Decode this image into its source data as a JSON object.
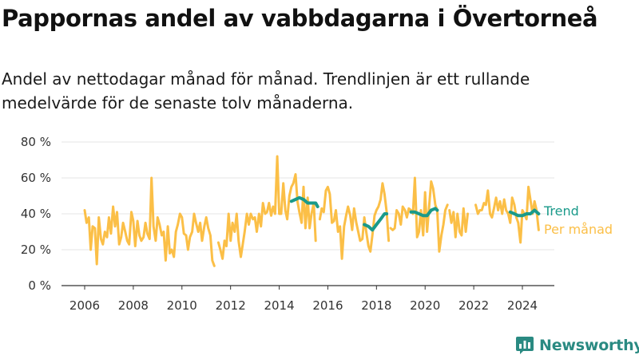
{
  "header": {
    "title": "Pappornas andel av vabbdagarna i Övertorneå",
    "subtitle": "Andel av nettodagar månad för månad. Trendlinjen är ett rullande medelvärde för de senaste tolv månaderna."
  },
  "brand": {
    "name": "Newsworthy",
    "icon": "newsworthy-logo-icon"
  },
  "colors": {
    "monthly": "#fbbf47",
    "trend": "#1a9a8a",
    "axis": "#333333",
    "grid": "#e6e6e6"
  },
  "chart_data": {
    "type": "line",
    "title": "Pappornas andel av vabbdagarna i Övertorneå",
    "subtitle": "Andel av nettodagar månad för månad. Trendlinjen är ett rullande medelvärde för de senaste tolv månaderna.",
    "x_ticks": [
      2006,
      2008,
      2010,
      2012,
      2014,
      2016,
      2018,
      2020,
      2022,
      2024
    ],
    "x_tick_labels": [
      "2006",
      "2008",
      "2010",
      "2012",
      "2014",
      "2016",
      "2018",
      "2020",
      "2022",
      "2024"
    ],
    "y_ticks": [
      0,
      20,
      40,
      60,
      80
    ],
    "y_tick_labels": [
      "0 %",
      "20 %",
      "40 %",
      "60 %",
      "80 %"
    ],
    "xlim": [
      2005.1,
      2025.2
    ],
    "ylim": [
      0,
      80
    ],
    "grid": "horizontal",
    "legend": "right",
    "series": [
      {
        "name": "Per månad",
        "segments": [
          [
            [
              2006.0,
              42
            ],
            [
              2006.08,
              35
            ],
            [
              2006.17,
              38
            ],
            [
              2006.25,
              20
            ],
            [
              2006.33,
              33
            ],
            [
              2006.42,
              32
            ],
            [
              2006.5,
              12
            ],
            [
              2006.58,
              38
            ],
            [
              2006.67,
              26
            ],
            [
              2006.75,
              23
            ],
            [
              2006.83,
              30
            ],
            [
              2006.92,
              27
            ],
            [
              2007.0,
              38
            ],
            [
              2007.08,
              29
            ],
            [
              2007.17,
              44
            ],
            [
              2007.25,
              33
            ],
            [
              2007.33,
              41
            ],
            [
              2007.42,
              23
            ],
            [
              2007.5,
              27
            ],
            [
              2007.58,
              35
            ],
            [
              2007.67,
              30
            ],
            [
              2007.75,
              25
            ],
            [
              2007.83,
              23
            ],
            [
              2007.92,
              41
            ],
            [
              2008.0,
              36
            ],
            [
              2008.08,
              22
            ],
            [
              2008.17,
              36
            ],
            [
              2008.25,
              28
            ],
            [
              2008.33,
              25
            ],
            [
              2008.42,
              27
            ],
            [
              2008.5,
              35
            ],
            [
              2008.58,
              29
            ],
            [
              2008.67,
              26
            ],
            [
              2008.75,
              60
            ],
            [
              2008.83,
              33
            ],
            [
              2008.92,
              25
            ],
            [
              2009.0,
              38
            ],
            [
              2009.08,
              34
            ],
            [
              2009.17,
              28
            ],
            [
              2009.25,
              30
            ],
            [
              2009.33,
              14
            ],
            [
              2009.42,
              33
            ],
            [
              2009.5,
              18
            ],
            [
              2009.58,
              20
            ],
            [
              2009.67,
              16
            ],
            [
              2009.75,
              30
            ],
            [
              2009.83,
              34
            ],
            [
              2009.92,
              40
            ],
            [
              2010.0,
              38
            ],
            [
              2010.08,
              29
            ],
            [
              2010.17,
              28
            ],
            [
              2010.25,
              20
            ],
            [
              2010.33,
              27
            ],
            [
              2010.42,
              30
            ],
            [
              2010.5,
              40
            ],
            [
              2010.58,
              35
            ],
            [
              2010.67,
              30
            ],
            [
              2010.75,
              35
            ],
            [
              2010.83,
              25
            ],
            [
              2010.92,
              33
            ],
            [
              2011.0,
              38
            ],
            [
              2011.08,
              32
            ],
            [
              2011.17,
              28
            ],
            [
              2011.25,
              14
            ],
            [
              2011.33,
              11
            ]
          ],
          [
            [
              2011.5,
              24
            ],
            [
              2011.58,
              20
            ],
            [
              2011.67,
              15
            ],
            [
              2011.75,
              25
            ],
            [
              2011.83,
              22
            ],
            [
              2011.92,
              40
            ],
            [
              2012.0,
              25
            ],
            [
              2012.08,
              35
            ],
            [
              2012.17,
              30
            ],
            [
              2012.25,
              40
            ],
            [
              2012.33,
              25
            ],
            [
              2012.42,
              16
            ],
            [
              2012.5,
              23
            ],
            [
              2012.58,
              30
            ],
            [
              2012.67,
              40
            ],
            [
              2012.75,
              34
            ],
            [
              2012.83,
              40
            ],
            [
              2012.92,
              37
            ],
            [
              2013.0,
              38
            ],
            [
              2013.08,
              30
            ],
            [
              2013.17,
              40
            ],
            [
              2013.25,
              33
            ],
            [
              2013.33,
              46
            ],
            [
              2013.42,
              40
            ],
            [
              2013.5,
              41
            ],
            [
              2013.58,
              46
            ],
            [
              2013.67,
              39
            ],
            [
              2013.75,
              44
            ],
            [
              2013.83,
              40
            ],
            [
              2013.92,
              72
            ],
            [
              2014.0,
              40
            ],
            [
              2014.08,
              40
            ],
            [
              2014.17,
              57
            ],
            [
              2014.25,
              42
            ],
            [
              2014.33,
              37
            ],
            [
              2014.42,
              50
            ],
            [
              2014.5,
              55
            ],
            [
              2014.58,
              57
            ],
            [
              2014.67,
              62
            ],
            [
              2014.75,
              47
            ],
            [
              2014.83,
              41
            ],
            [
              2014.92,
              35
            ],
            [
              2015.0,
              55
            ],
            [
              2015.08,
              32
            ],
            [
              2015.17,
              49
            ],
            [
              2015.25,
              32
            ],
            [
              2015.33,
              40
            ],
            [
              2015.42,
              46
            ],
            [
              2015.5,
              25
            ]
          ],
          [
            [
              2015.67,
              37
            ],
            [
              2015.75,
              43
            ],
            [
              2015.83,
              41
            ],
            [
              2015.92,
              53
            ],
            [
              2016.0,
              55
            ],
            [
              2016.08,
              51
            ],
            [
              2016.17,
              35
            ],
            [
              2016.25,
              36
            ],
            [
              2016.33,
              42
            ],
            [
              2016.42,
              30
            ],
            [
              2016.5,
              33
            ],
            [
              2016.58,
              15
            ],
            [
              2016.67,
              33
            ],
            [
              2016.75,
              39
            ],
            [
              2016.83,
              44
            ],
            [
              2016.92,
              39
            ],
            [
              2017.0,
              31
            ],
            [
              2017.08,
              43
            ],
            [
              2017.17,
              35
            ],
            [
              2017.25,
              30
            ],
            [
              2017.33,
              25
            ],
            [
              2017.42,
              26
            ],
            [
              2017.5,
              38
            ],
            [
              2017.58,
              30
            ],
            [
              2017.67,
              22
            ],
            [
              2017.75,
              19
            ],
            [
              2017.83,
              28
            ],
            [
              2017.92,
              39
            ],
            [
              2018.0,
              42
            ],
            [
              2018.08,
              44
            ],
            [
              2018.17,
              48
            ],
            [
              2018.25,
              57
            ],
            [
              2018.33,
              51
            ],
            [
              2018.42,
              41
            ],
            [
              2018.5,
              25
            ]
          ],
          [
            [
              2018.58,
              32
            ],
            [
              2018.67,
              31
            ],
            [
              2018.75,
              32
            ],
            [
              2018.83,
              42
            ],
            [
              2018.92,
              40
            ],
            [
              2019.0,
              34
            ],
            [
              2019.08,
              44
            ],
            [
              2019.17,
              42
            ],
            [
              2019.25,
              38
            ],
            [
              2019.33,
              43
            ],
            [
              2019.42,
              42
            ],
            [
              2019.5,
              40
            ],
            [
              2019.58,
              60
            ],
            [
              2019.67,
              27
            ],
            [
              2019.75,
              30
            ],
            [
              2019.83,
              42
            ],
            [
              2019.92,
              28
            ],
            [
              2020.0,
              52
            ],
            [
              2020.08,
              30
            ],
            [
              2020.17,
              45
            ],
            [
              2020.25,
              58
            ],
            [
              2020.33,
              54
            ],
            [
              2020.42,
              45
            ],
            [
              2020.5,
              42
            ],
            [
              2020.58,
              19
            ],
            [
              2020.67,
              28
            ],
            [
              2020.75,
              34
            ],
            [
              2020.83,
              42
            ],
            [
              2020.92,
              45
            ]
          ],
          [
            [
              2021.0,
              42
            ],
            [
              2021.08,
              35
            ],
            [
              2021.17,
              41
            ],
            [
              2021.25,
              27
            ],
            [
              2021.33,
              40
            ],
            [
              2021.42,
              30
            ],
            [
              2021.5,
              28
            ],
            [
              2021.58,
              43
            ],
            [
              2021.67,
              30
            ],
            [
              2021.75,
              40
            ]
          ],
          [
            [
              2022.08,
              45
            ],
            [
              2022.17,
              40
            ],
            [
              2022.25,
              42
            ],
            [
              2022.33,
              42
            ],
            [
              2022.42,
              46
            ],
            [
              2022.5,
              45
            ],
            [
              2022.58,
              53
            ],
            [
              2022.67,
              40
            ],
            [
              2022.75,
              38
            ],
            [
              2022.83,
              43
            ],
            [
              2022.92,
              49
            ],
            [
              2023.0,
              42
            ],
            [
              2023.08,
              47
            ],
            [
              2023.17,
              40
            ],
            [
              2023.25,
              48
            ],
            [
              2023.33,
              42
            ],
            [
              2023.42,
              40
            ],
            [
              2023.5,
              35
            ],
            [
              2023.58,
              49
            ],
            [
              2023.67,
              45
            ],
            [
              2023.75,
              38
            ],
            [
              2023.83,
              35
            ],
            [
              2023.92,
              24
            ],
            [
              2024.0,
              42
            ],
            [
              2024.08,
              40
            ],
            [
              2024.17,
              37
            ],
            [
              2024.25,
              55
            ],
            [
              2024.33,
              48
            ],
            [
              2024.42,
              40
            ],
            [
              2024.5,
              47
            ],
            [
              2024.58,
              42
            ],
            [
              2024.67,
              31
            ]
          ]
        ]
      },
      {
        "name": "Trend",
        "segments": [
          [
            [
              2014.5,
              47
            ],
            [
              2014.67,
              48
            ],
            [
              2014.83,
              49
            ],
            [
              2015.0,
              48
            ],
            [
              2015.17,
              46
            ],
            [
              2015.33,
              46
            ],
            [
              2015.5,
              46
            ],
            [
              2015.58,
              44
            ]
          ],
          [
            [
              2017.5,
              34
            ],
            [
              2017.67,
              33
            ],
            [
              2017.83,
              31
            ],
            [
              2018.0,
              34
            ],
            [
              2018.17,
              37
            ],
            [
              2018.33,
              40
            ],
            [
              2018.42,
              40
            ]
          ],
          [
            [
              2019.42,
              41
            ],
            [
              2019.58,
              41
            ],
            [
              2019.75,
              40
            ],
            [
              2019.92,
              39
            ],
            [
              2020.08,
              39
            ],
            [
              2020.25,
              42
            ],
            [
              2020.42,
              43
            ],
            [
              2020.5,
              42
            ]
          ],
          [
            [
              2023.5,
              41
            ],
            [
              2023.67,
              40
            ],
            [
              2023.83,
              39
            ],
            [
              2024.0,
              39
            ],
            [
              2024.17,
              40
            ],
            [
              2024.33,
              40
            ],
            [
              2024.5,
              42
            ],
            [
              2024.67,
              40
            ]
          ]
        ]
      }
    ]
  }
}
